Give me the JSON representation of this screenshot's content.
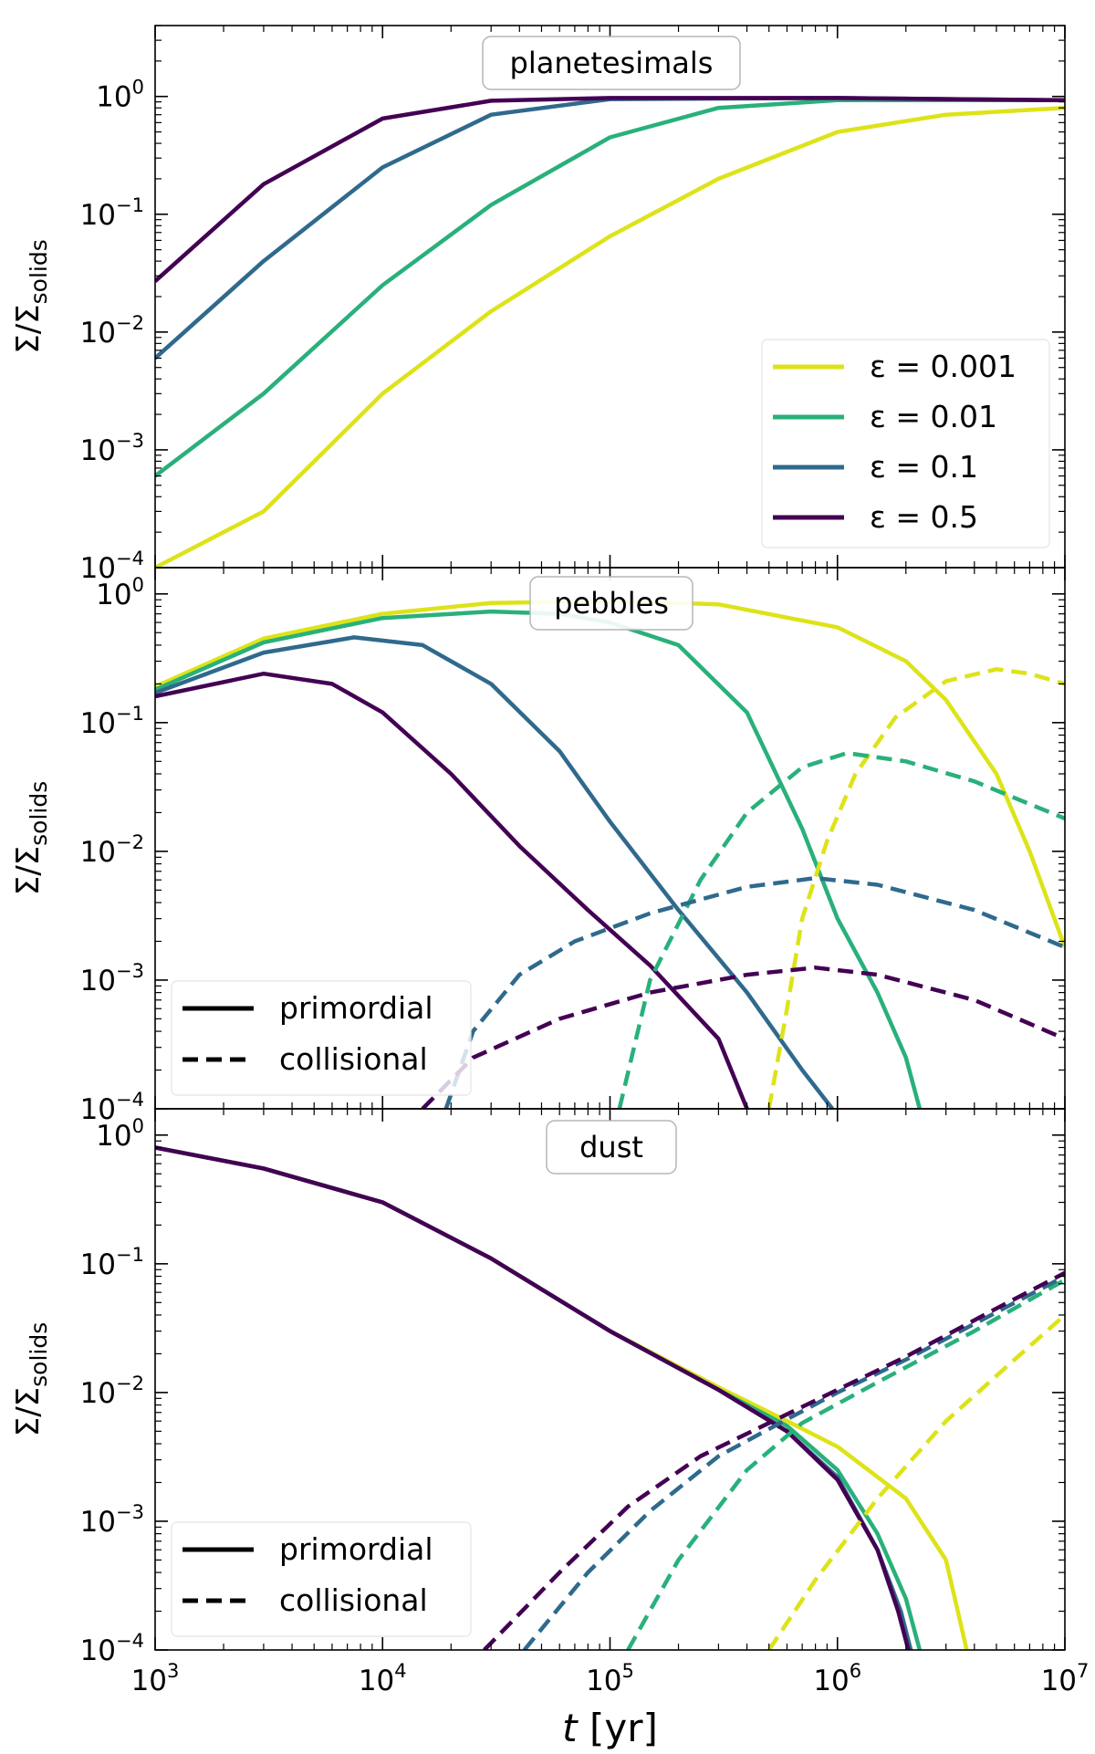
{
  "chart_data": [
    {
      "type": "line",
      "panel": "planetesimals",
      "title": "planetesimals",
      "ylabel_main": "Σ/Σ",
      "ylabel_sub": "solids",
      "xscale": "log",
      "yscale": "log",
      "xlim": [
        1000,
        10000000
      ],
      "ylim": [
        0.0001,
        4
      ],
      "yticks": [
        {
          "base": "10",
          "exp": "0"
        },
        {
          "base": "10",
          "exp": "−1"
        },
        {
          "base": "10",
          "exp": "−2"
        },
        {
          "base": "10",
          "exp": "−3"
        },
        {
          "base": "10",
          "exp": "−4"
        }
      ],
      "legend": {
        "placement": "lower-right",
        "entries": [
          {
            "label": "ε = 0.001",
            "color": "#dde318"
          },
          {
            "label": "ε = 0.01",
            "color": "#29b07b"
          },
          {
            "label": "ε = 0.1",
            "color": "#2f6a8d"
          },
          {
            "label": "ε = 0.5",
            "color": "#440154"
          }
        ]
      },
      "series": [
        {
          "name": "ε = 0.001",
          "color": "#dde318",
          "style": "solid",
          "points": [
            [
              1000,
              0.0001
            ],
            [
              3000,
              0.0003
            ],
            [
              10000,
              0.003
            ],
            [
              30000,
              0.015
            ],
            [
              100000,
              0.065
            ],
            [
              300000,
              0.2
            ],
            [
              1000000,
              0.5
            ],
            [
              3000000,
              0.7
            ],
            [
              10000000,
              0.8
            ]
          ]
        },
        {
          "name": "ε = 0.01",
          "color": "#29b07b",
          "style": "solid",
          "points": [
            [
              1000,
              0.0006
            ],
            [
              3000,
              0.003
            ],
            [
              10000,
              0.025
            ],
            [
              30000,
              0.12
            ],
            [
              100000,
              0.45
            ],
            [
              300000,
              0.8
            ],
            [
              1000000,
              0.93
            ],
            [
              10000000,
              0.93
            ]
          ]
        },
        {
          "name": "ε = 0.1",
          "color": "#2f6a8d",
          "style": "solid",
          "points": [
            [
              1000,
              0.006
            ],
            [
              3000,
              0.04
            ],
            [
              10000,
              0.25
            ],
            [
              30000,
              0.7
            ],
            [
              100000,
              0.95
            ],
            [
              1000000,
              0.97
            ],
            [
              10000000,
              0.93
            ]
          ]
        },
        {
          "name": "ε = 0.5",
          "color": "#440154",
          "style": "solid",
          "points": [
            [
              1000,
              0.027
            ],
            [
              3000,
              0.18
            ],
            [
              10000,
              0.65
            ],
            [
              30000,
              0.92
            ],
            [
              100000,
              0.97
            ],
            [
              1000000,
              0.97
            ],
            [
              10000000,
              0.93
            ]
          ]
        }
      ]
    },
    {
      "type": "line",
      "panel": "pebbles",
      "title": "pebbles",
      "ylabel_main": "Σ/Σ",
      "ylabel_sub": "solids",
      "xscale": "log",
      "yscale": "log",
      "xlim": [
        1000,
        10000000
      ],
      "ylim": [
        0.0001,
        1.6
      ],
      "yticks": [
        {
          "base": "10",
          "exp": "0"
        },
        {
          "base": "10",
          "exp": "−1"
        },
        {
          "base": "10",
          "exp": "−2"
        },
        {
          "base": "10",
          "exp": "−3"
        },
        {
          "base": "10",
          "exp": "−4"
        }
      ],
      "legend": {
        "placement": "lower-left",
        "entries": [
          {
            "label": "primordial",
            "style": "solid"
          },
          {
            "label": "collisional",
            "style": "dashed"
          }
        ]
      },
      "series": [
        {
          "name": "ε = 0.001 primordial",
          "color": "#dde318",
          "style": "solid",
          "points": [
            [
              1000,
              0.19
            ],
            [
              3000,
              0.45
            ],
            [
              10000,
              0.7
            ],
            [
              30000,
              0.85
            ],
            [
              100000,
              0.88
            ],
            [
              300000,
              0.83
            ],
            [
              1000000,
              0.55
            ],
            [
              2000000,
              0.3
            ],
            [
              3000000,
              0.15
            ],
            [
              5000000,
              0.04
            ],
            [
              7000000,
              0.01
            ],
            [
              10000000,
              0.0018
            ]
          ]
        },
        {
          "name": "ε = 0.01 primordial",
          "color": "#29b07b",
          "style": "solid",
          "points": [
            [
              1000,
              0.18
            ],
            [
              3000,
              0.42
            ],
            [
              10000,
              0.65
            ],
            [
              30000,
              0.73
            ],
            [
              60000,
              0.7
            ],
            [
              100000,
              0.6
            ],
            [
              200000,
              0.4
            ],
            [
              400000,
              0.12
            ],
            [
              700000,
              0.015
            ],
            [
              1000000,
              0.003
            ],
            [
              1500000,
              0.0008
            ],
            [
              2000000,
              0.00025
            ],
            [
              2300000,
              0.0001
            ]
          ]
        },
        {
          "name": "ε = 0.1 primordial",
          "color": "#2f6a8d",
          "style": "solid",
          "points": [
            [
              1000,
              0.17
            ],
            [
              3000,
              0.35
            ],
            [
              7500,
              0.46
            ],
            [
              15000,
              0.4
            ],
            [
              30000,
              0.2
            ],
            [
              60000,
              0.06
            ],
            [
              100000,
              0.017
            ],
            [
              200000,
              0.0035
            ],
            [
              400000,
              0.0008
            ],
            [
              700000,
              0.0002
            ],
            [
              950000,
              0.0001
            ]
          ]
        },
        {
          "name": "ε = 0.5 primordial",
          "color": "#440154",
          "style": "solid",
          "points": [
            [
              1000,
              0.16
            ],
            [
              3000,
              0.24
            ],
            [
              6000,
              0.2
            ],
            [
              10000,
              0.12
            ],
            [
              20000,
              0.04
            ],
            [
              40000,
              0.011
            ],
            [
              80000,
              0.0035
            ],
            [
              150000,
              0.0013
            ],
            [
              300000,
              0.00035
            ],
            [
              400000,
              0.0001
            ]
          ]
        },
        {
          "name": "ε = 0.001 collisional",
          "color": "#dde318",
          "style": "dashed",
          "points": [
            [
              500000,
              0.0001
            ],
            [
              600000,
              0.0006
            ],
            [
              700000,
              0.003
            ],
            [
              900000,
              0.012
            ],
            [
              1200000,
              0.04
            ],
            [
              1800000,
              0.11
            ],
            [
              3000000,
              0.21
            ],
            [
              5000000,
              0.26
            ],
            [
              7000000,
              0.24
            ],
            [
              10000000,
              0.2
            ]
          ]
        },
        {
          "name": "ε = 0.01 collisional",
          "color": "#29b07b",
          "style": "dashed",
          "points": [
            [
              110000,
              0.0001
            ],
            [
              150000,
              0.001
            ],
            [
              250000,
              0.006
            ],
            [
              400000,
              0.02
            ],
            [
              700000,
              0.045
            ],
            [
              1100000,
              0.058
            ],
            [
              2000000,
              0.05
            ],
            [
              4000000,
              0.035
            ],
            [
              10000000,
              0.018
            ]
          ]
        },
        {
          "name": "ε = 0.1 collisional",
          "color": "#2f6a8d",
          "style": "dashed",
          "points": [
            [
              19000,
              0.0001
            ],
            [
              25000,
              0.0004
            ],
            [
              40000,
              0.0011
            ],
            [
              70000,
              0.002
            ],
            [
              150000,
              0.0033
            ],
            [
              400000,
              0.0053
            ],
            [
              800000,
              0.0062
            ],
            [
              1500000,
              0.0055
            ],
            [
              4000000,
              0.0035
            ],
            [
              10000000,
              0.0018
            ]
          ]
        },
        {
          "name": "ε = 0.5 collisional",
          "color": "#440154",
          "style": "dashed",
          "points": [
            [
              15000,
              0.0001
            ],
            [
              25000,
              0.00025
            ],
            [
              60000,
              0.0005
            ],
            [
              150000,
              0.0008
            ],
            [
              400000,
              0.0011
            ],
            [
              800000,
              0.00125
            ],
            [
              1500000,
              0.0011
            ],
            [
              4000000,
              0.0007
            ],
            [
              10000000,
              0.00035
            ]
          ]
        }
      ]
    },
    {
      "type": "line",
      "panel": "dust",
      "title": "dust",
      "ylabel_main": "Σ/Σ",
      "ylabel_sub": "solids",
      "xlabel_main": "t",
      "xlabel_rest": " [yr]",
      "xscale": "log",
      "yscale": "log",
      "xlim": [
        1000,
        10000000
      ],
      "ylim": [
        0.0001,
        1.6
      ],
      "xticks": [
        {
          "base": "10",
          "exp": "3"
        },
        {
          "base": "10",
          "exp": "4"
        },
        {
          "base": "10",
          "exp": "5"
        },
        {
          "base": "10",
          "exp": "6"
        },
        {
          "base": "10",
          "exp": "7"
        }
      ],
      "yticks": [
        {
          "base": "10",
          "exp": "0"
        },
        {
          "base": "10",
          "exp": "−1"
        },
        {
          "base": "10",
          "exp": "−2"
        },
        {
          "base": "10",
          "exp": "−3"
        },
        {
          "base": "10",
          "exp": "−4"
        }
      ],
      "legend": {
        "placement": "lower-left",
        "entries": [
          {
            "label": "primordial",
            "style": "solid"
          },
          {
            "label": "collisional",
            "style": "dashed"
          }
        ]
      },
      "series": [
        {
          "name": "ε = 0.001 primordial",
          "color": "#dde318",
          "style": "solid",
          "points": [
            [
              1000,
              0.8
            ],
            [
              3000,
              0.55
            ],
            [
              10000,
              0.3
            ],
            [
              30000,
              0.11
            ],
            [
              100000,
              0.03
            ],
            [
              300000,
              0.011
            ],
            [
              600000,
              0.006
            ],
            [
              1000000,
              0.0038
            ],
            [
              2000000,
              0.0015
            ],
            [
              3000000,
              0.0005
            ],
            [
              3700000,
              0.0001
            ]
          ]
        },
        {
          "name": "ε = 0.01 primordial",
          "color": "#29b07b",
          "style": "solid",
          "points": [
            [
              1000,
              0.8
            ],
            [
              3000,
              0.55
            ],
            [
              10000,
              0.3
            ],
            [
              30000,
              0.11
            ],
            [
              100000,
              0.03
            ],
            [
              300000,
              0.0105
            ],
            [
              600000,
              0.0055
            ],
            [
              1000000,
              0.0025
            ],
            [
              1500000,
              0.0008
            ],
            [
              2000000,
              0.00025
            ],
            [
              2300000,
              0.0001
            ]
          ]
        },
        {
          "name": "ε = 0.1 primordial",
          "color": "#2f6a8d",
          "style": "solid",
          "points": [
            [
              1000,
              0.8
            ],
            [
              3000,
              0.55
            ],
            [
              10000,
              0.3
            ],
            [
              30000,
              0.11
            ],
            [
              100000,
              0.03
            ],
            [
              300000,
              0.0105
            ],
            [
              600000,
              0.005
            ],
            [
              1000000,
              0.0022
            ],
            [
              1500000,
              0.0006
            ],
            [
              1900000,
              0.0002
            ],
            [
              2100000,
              0.0001
            ]
          ]
        },
        {
          "name": "ε = 0.5 primordial",
          "color": "#440154",
          "style": "solid",
          "points": [
            [
              1000,
              0.8
            ],
            [
              3000,
              0.55
            ],
            [
              10000,
              0.3
            ],
            [
              30000,
              0.11
            ],
            [
              100000,
              0.03
            ],
            [
              300000,
              0.0105
            ],
            [
              600000,
              0.005
            ],
            [
              1000000,
              0.0021
            ],
            [
              1500000,
              0.0006
            ],
            [
              1850000,
              0.0002
            ],
            [
              2050000,
              0.0001
            ]
          ]
        },
        {
          "name": "ε = 0.001 collisional",
          "color": "#dde318",
          "style": "dashed",
          "points": [
            [
              500000,
              0.0001
            ],
            [
              800000,
              0.00035
            ],
            [
              1500000,
              0.0015
            ],
            [
              3000000,
              0.006
            ],
            [
              6000000,
              0.018
            ],
            [
              10000000,
              0.04
            ]
          ]
        },
        {
          "name": "ε = 0.01 collisional",
          "color": "#29b07b",
          "style": "dashed",
          "points": [
            [
              120000,
              0.0001
            ],
            [
              200000,
              0.0005
            ],
            [
              400000,
              0.0025
            ],
            [
              700000,
              0.0058
            ],
            [
              1500000,
              0.012
            ],
            [
              4000000,
              0.03
            ],
            [
              10000000,
              0.075
            ]
          ]
        },
        {
          "name": "ε = 0.1 collisional",
          "color": "#2f6a8d",
          "style": "dashed",
          "points": [
            [
              42000,
              0.0001
            ],
            [
              80000,
              0.0004
            ],
            [
              150000,
              0.0012
            ],
            [
              300000,
              0.0032
            ],
            [
              600000,
              0.0062
            ],
            [
              1000000,
              0.01
            ],
            [
              2000000,
              0.018
            ],
            [
              5000000,
              0.042
            ],
            [
              10000000,
              0.08
            ]
          ]
        },
        {
          "name": "ε = 0.5 collisional",
          "color": "#440154",
          "style": "dashed",
          "points": [
            [
              28000,
              0.0001
            ],
            [
              60000,
              0.0004
            ],
            [
              120000,
              0.0013
            ],
            [
              250000,
              0.0032
            ],
            [
              500000,
              0.0058
            ],
            [
              1000000,
              0.0105
            ],
            [
              2000000,
              0.019
            ],
            [
              5000000,
              0.045
            ],
            [
              10000000,
              0.085
            ]
          ]
        }
      ]
    }
  ]
}
